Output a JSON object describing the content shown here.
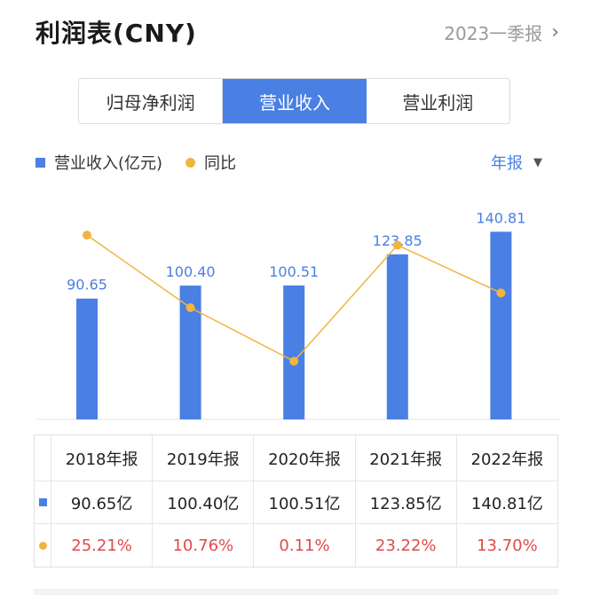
{
  "header": {
    "title": "利润表(CNY)",
    "period": "2023一季报"
  },
  "tabs": [
    {
      "label": "归母净利润",
      "active": false
    },
    {
      "label": "营业收入",
      "active": true
    },
    {
      "label": "营业利润",
      "active": false
    }
  ],
  "legend": {
    "bar_label": "营业收入(亿元)",
    "line_label": "同比",
    "period_select": "年报"
  },
  "colors": {
    "accent": "#4a7fe3",
    "line": "#f0b440",
    "negative": "#e04a4a"
  },
  "chart_data": {
    "type": "bar",
    "categories": [
      "2018年报",
      "2019年报",
      "2020年报",
      "2021年报",
      "2022年报"
    ],
    "series": [
      {
        "name": "营业收入(亿元)",
        "kind": "bar",
        "values": [
          90.65,
          100.4,
          100.51,
          123.85,
          140.81
        ],
        "labels": [
          "90.65",
          "100.40",
          "100.51",
          "123.85",
          "140.81"
        ]
      },
      {
        "name": "同比",
        "kind": "line",
        "values": [
          25.21,
          10.76,
          0.11,
          23.22,
          13.7
        ]
      }
    ]
  },
  "table": {
    "headers": [
      "2018年报",
      "2019年报",
      "2020年报",
      "2021年报",
      "2022年报"
    ],
    "revenue": [
      "90.65亿",
      "100.40亿",
      "100.51亿",
      "123.85亿",
      "140.81亿"
    ],
    "yoy": [
      "25.21%",
      "10.76%",
      "0.11%",
      "23.22%",
      "13.70%"
    ]
  }
}
